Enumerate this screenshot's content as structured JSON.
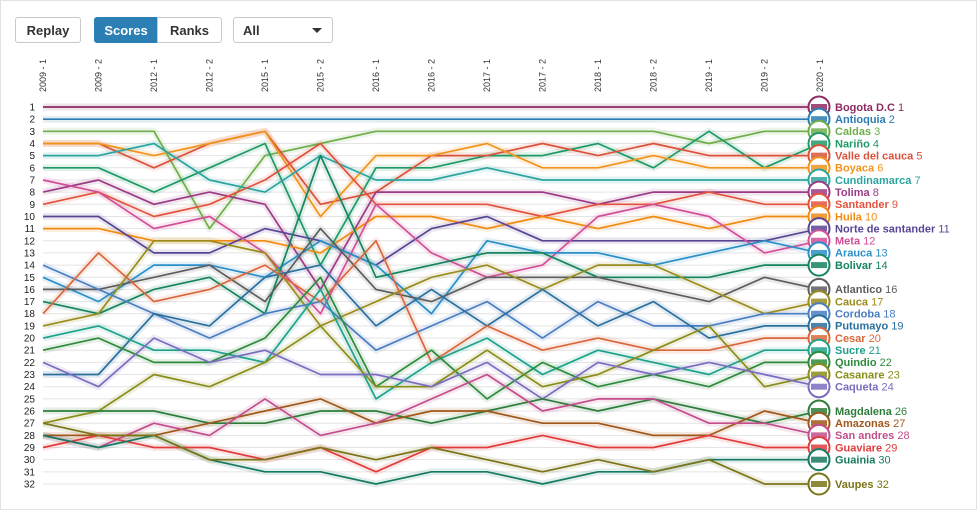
{
  "controls": {
    "replay": "Replay",
    "scores": "Scores",
    "ranks": "Ranks",
    "filter": "All"
  },
  "chart_data": {
    "type": "line",
    "x": [
      "2009 - 1",
      "2009 - 2",
      "2012 - 1",
      "2012 - 2",
      "2015 - 1",
      "2015 - 2",
      "2016 - 1",
      "2016 - 2",
      "2017 - 1",
      "2017 - 2",
      "2018 - 1",
      "2018 - 2",
      "2019 - 1",
      "2019 - 2",
      "2020 - 1"
    ],
    "ylim": [
      1,
      32
    ],
    "y_ticks": [
      1,
      2,
      3,
      4,
      5,
      6,
      7,
      8,
      9,
      10,
      11,
      12,
      13,
      14,
      15,
      16,
      17,
      18,
      19,
      20,
      21,
      22,
      23,
      24,
      25,
      26,
      27,
      28,
      29,
      30,
      31,
      32
    ],
    "y_axis_reversed": true,
    "series": [
      {
        "name": "Bogota D.C",
        "label": "1",
        "color": "#8e2b62",
        "values": [
          1,
          1,
          1,
          1,
          1,
          1,
          1,
          1,
          1,
          1,
          1,
          1,
          1,
          1,
          1
        ]
      },
      {
        "name": "Antioquia",
        "label": "2",
        "color": "#2c7bb2",
        "values": [
          2,
          2,
          2,
          2,
          2,
          2,
          2,
          2,
          2,
          2,
          2,
          2,
          2,
          2,
          2
        ]
      },
      {
        "name": "Caldas",
        "label": "3",
        "color": "#6fae4a",
        "values": [
          3,
          3,
          3,
          11,
          5,
          4,
          3,
          3,
          3,
          3,
          3,
          3,
          4,
          3,
          3
        ]
      },
      {
        "name": "Nariño",
        "label": "4",
        "color": "#1e9a66",
        "values": [
          6,
          6,
          8,
          6,
          4,
          14,
          6,
          6,
          5,
          5,
          4,
          6,
          3,
          6,
          4
        ]
      },
      {
        "name": "Valle del cauca",
        "label": "5",
        "color": "#d9533b",
        "values": [
          4,
          4,
          6,
          4,
          3,
          9,
          8,
          5,
          5,
          4,
          5,
          4,
          5,
          5,
          5
        ]
      },
      {
        "name": "Boyaca",
        "label": "6",
        "color": "#f0941e",
        "values": [
          4,
          4,
          5,
          4,
          3,
          10,
          5,
          5,
          4,
          6,
          6,
          5,
          6,
          6,
          6
        ]
      },
      {
        "name": "Cundinamarca",
        "label": "7",
        "color": "#2ca5a0",
        "values": [
          5,
          5,
          4,
          7,
          8,
          5,
          7,
          7,
          6,
          7,
          7,
          7,
          7,
          7,
          7
        ]
      },
      {
        "name": "Tolima",
        "label": "8",
        "color": "#9c3a86",
        "values": [
          8,
          7,
          9,
          8,
          9,
          16,
          8,
          8,
          8,
          8,
          9,
          8,
          8,
          8,
          8
        ]
      },
      {
        "name": "Santander",
        "label": "9",
        "color": "#e2533f",
        "values": [
          9,
          8,
          10,
          9,
          7,
          4,
          9,
          9,
          9,
          10,
          9,
          9,
          8,
          9,
          9
        ]
      },
      {
        "name": "Huila",
        "label": "10",
        "color": "#ef8b13",
        "values": [
          11,
          11,
          12,
          12,
          12,
          13,
          10,
          10,
          11,
          10,
          11,
          10,
          11,
          10,
          10
        ]
      },
      {
        "name": "Norte de santander",
        "label": "11",
        "color": "#5a4595",
        "values": [
          10,
          10,
          13,
          13,
          11,
          12,
          14,
          11,
          10,
          12,
          12,
          12,
          12,
          12,
          11
        ]
      },
      {
        "name": "Meta",
        "label": "12",
        "color": "#d14f97",
        "values": [
          7,
          8,
          11,
          10,
          13,
          18,
          9,
          13,
          15,
          14,
          10,
          9,
          10,
          13,
          12
        ]
      },
      {
        "name": "Arauca",
        "label": "13",
        "color": "#2b8fc7",
        "values": [
          15,
          17,
          14,
          14,
          15,
          12,
          14,
          18,
          12,
          13,
          13,
          14,
          13,
          12,
          13
        ]
      },
      {
        "name": "Bolivar",
        "label": "14",
        "color": "#15845f",
        "values": [
          17,
          18,
          16,
          15,
          18,
          5,
          15,
          14,
          13,
          13,
          15,
          15,
          15,
          14,
          14
        ]
      },
      {
        "name": "Atlantico",
        "label": "16",
        "color": "#5d5d5d",
        "values": [
          16,
          16,
          15,
          14,
          17,
          11,
          16,
          17,
          15,
          15,
          15,
          16,
          17,
          15,
          16
        ]
      },
      {
        "name": "Cauca",
        "label": "17",
        "color": "#9a8c1c",
        "values": [
          19,
          18,
          12,
          12,
          13,
          19,
          17,
          15,
          14,
          16,
          14,
          14,
          16,
          18,
          17
        ]
      },
      {
        "name": "Cordoba",
        "label": "18",
        "color": "#4a7ec2",
        "values": [
          14,
          16,
          18,
          20,
          18,
          17,
          21,
          19,
          17,
          20,
          17,
          19,
          19,
          18,
          18
        ]
      },
      {
        "name": "Putumayo",
        "label": "19",
        "color": "#2a6f9e",
        "values": [
          23,
          23,
          18,
          19,
          15,
          14,
          19,
          16,
          19,
          16,
          19,
          17,
          20,
          19,
          19
        ]
      },
      {
        "name": "Cesar",
        "label": "20",
        "color": "#d8683c",
        "values": [
          18,
          13,
          17,
          16,
          14,
          17,
          12,
          22,
          19,
          21,
          20,
          21,
          21,
          20,
          20
        ]
      },
      {
        "name": "Sucre",
        "label": "21",
        "color": "#1ea18b",
        "values": [
          20,
          19,
          21,
          21,
          22,
          16,
          25,
          22,
          20,
          23,
          21,
          22,
          23,
          21,
          21
        ]
      },
      {
        "name": "Quindio",
        "label": "22",
        "color": "#2e8b3c",
        "values": [
          21,
          20,
          22,
          22,
          20,
          15,
          24,
          21,
          25,
          22,
          24,
          23,
          24,
          22,
          22
        ]
      },
      {
        "name": "Casanare",
        "label": "23",
        "color": "#8a8d19",
        "values": [
          27,
          26,
          23,
          24,
          22,
          19,
          24,
          24,
          21,
          24,
          23,
          21,
          19,
          24,
          23
        ]
      },
      {
        "name": "Caqueta",
        "label": "24",
        "color": "#7b6cbf",
        "values": [
          22,
          24,
          20,
          22,
          21,
          23,
          23,
          24,
          22,
          25,
          22,
          23,
          22,
          23,
          24
        ]
      },
      {
        "name": "Magdalena",
        "label": "26",
        "color": "#2e7d3a",
        "values": [
          26,
          26,
          26,
          27,
          27,
          26,
          26,
          27,
          26,
          25,
          26,
          25,
          26,
          27,
          26
        ]
      },
      {
        "name": "Amazonas",
        "label": "27",
        "color": "#a0581a",
        "values": [
          28,
          28,
          28,
          27,
          26,
          25,
          27,
          26,
          26,
          27,
          27,
          28,
          28,
          26,
          27
        ]
      },
      {
        "name": "San andres",
        "label": "28",
        "color": "#c24e8c",
        "values": [
          28,
          29,
          27,
          28,
          25,
          28,
          27,
          25,
          23,
          26,
          25,
          25,
          27,
          27,
          28
        ]
      },
      {
        "name": "Guaviare",
        "label": "29",
        "color": "#e03c3c",
        "values": [
          29,
          28,
          29,
          29,
          30,
          29,
          31,
          29,
          29,
          28,
          29,
          29,
          28,
          29,
          29
        ]
      },
      {
        "name": "Guainia",
        "label": "30",
        "color": "#177a62",
        "values": [
          28,
          29,
          28,
          30,
          31,
          31,
          32,
          31,
          31,
          32,
          31,
          31,
          30,
          30,
          30
        ]
      },
      {
        "name": "Vaupes",
        "label": "32",
        "color": "#7c7418",
        "values": [
          27,
          28,
          28,
          30,
          30,
          29,
          30,
          29,
          30,
          31,
          30,
          31,
          30,
          32,
          32
        ]
      }
    ]
  }
}
